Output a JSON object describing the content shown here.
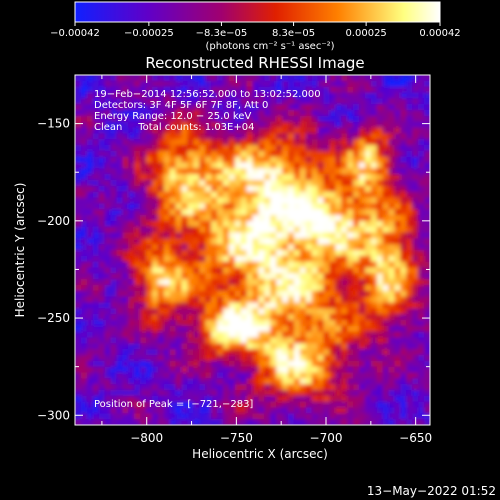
{
  "chart_data": {
    "type": "heatmap",
    "title": "Reconstructed RHESSI Image",
    "xlabel": "Heliocentric X (arcsec)",
    "ylabel": "Heliocentric Y (arcsec)",
    "xlim": [
      -840,
      -642
    ],
    "ylim": [
      -305,
      -125
    ],
    "x_ticks": [
      -800,
      -750,
      -700,
      -650
    ],
    "y_ticks": [
      -150,
      -200,
      -250,
      -300
    ],
    "x_tick_labels": [
      "−800",
      "−750",
      "−700",
      "−650"
    ],
    "y_tick_labels": [
      "−150",
      "−200",
      "−250",
      "−300"
    ],
    "colorbar": {
      "range": [
        -0.00042,
        0.00042
      ],
      "tick_labels": [
        "−0.00042",
        "−0.00025",
        "−8.3e−05",
        "8.3e−05",
        "0.00025",
        "0.00042"
      ],
      "tick_values": [
        -0.00042,
        -0.00025,
        -8.3e-05,
        8.3e-05,
        0.00025,
        0.00042
      ],
      "units_label": "(photons cm⁻² s⁻¹ asec⁻²)",
      "colors": [
        "#1020ff",
        "#6000c8",
        "#a00070",
        "#e02000",
        "#ff8000",
        "#ffff80",
        "#ffffff"
      ]
    },
    "annotations": [
      "19−Feb−2014 12:56:52.000 to 13:02:52.000",
      "Detectors: 3F 4F 5F 6F 7F 8F, Att 0",
      "Energy Range: 12.0 − 25.0 keV",
      "Clean     Total counts: 1.03E+04"
    ],
    "peak_label": "Position of Peak = [−721,−283]",
    "peak": {
      "x": -721,
      "y": -283
    },
    "footer_date": "13−May−2022 01:52"
  }
}
